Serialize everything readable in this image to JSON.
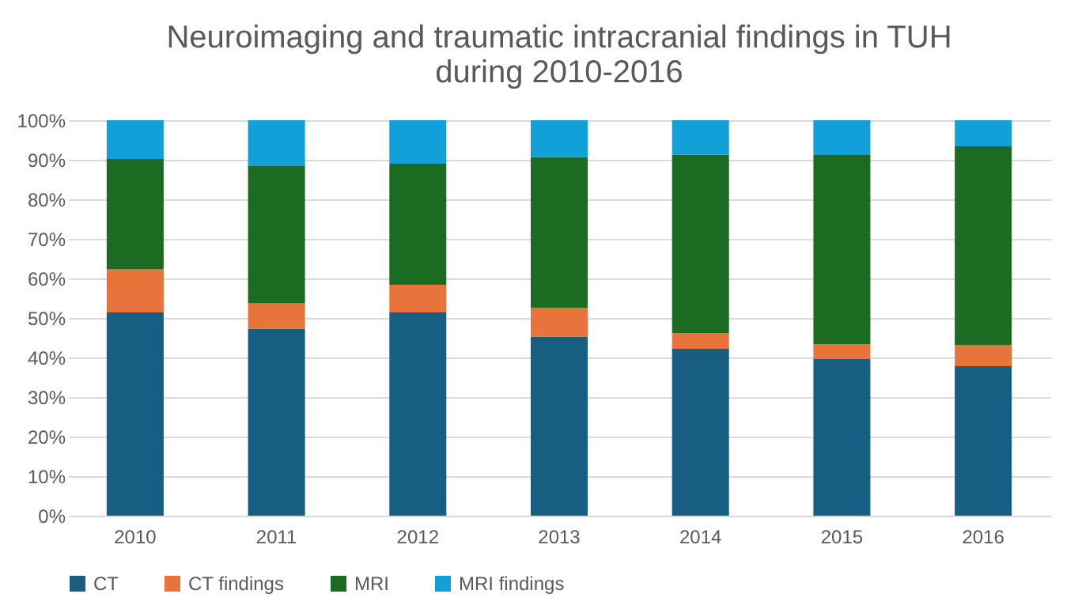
{
  "chart_data": {
    "type": "bar",
    "title": "Neuroimaging and traumatic intracranial findings in TUH during 2010-2016",
    "stacked": true,
    "categories": [
      "2010",
      "2011",
      "2012",
      "2013",
      "2014",
      "2015",
      "2016"
    ],
    "series": [
      {
        "name": "CT",
        "color": "#175f82",
        "values": [
          51.4,
          47.3,
          51.4,
          45.3,
          42.2,
          39.6,
          37.8
        ]
      },
      {
        "name": "CT findings",
        "color": "#e8743b",
        "values": [
          10.9,
          6.4,
          7.0,
          7.3,
          4.0,
          3.8,
          5.3
        ]
      },
      {
        "name": "MRI",
        "color": "#1b6b23",
        "values": [
          27.9,
          34.7,
          30.6,
          38.1,
          45.1,
          47.8,
          50.3
        ]
      },
      {
        "name": "MRI findings",
        "color": "#11a0d8",
        "values": [
          9.8,
          11.6,
          11.0,
          9.3,
          8.7,
          8.8,
          6.6
        ]
      }
    ],
    "ylim": [
      0,
      100
    ],
    "yticks": [
      {
        "value": 0,
        "label": "0%"
      },
      {
        "value": 10,
        "label": "10%"
      },
      {
        "value": 20,
        "label": "20%"
      },
      {
        "value": 30,
        "label": "30%"
      },
      {
        "value": 40,
        "label": "40%"
      },
      {
        "value": 50,
        "label": "50%"
      },
      {
        "value": 60,
        "label": "60%"
      },
      {
        "value": 70,
        "label": "70%"
      },
      {
        "value": 80,
        "label": "80%"
      },
      {
        "value": 90,
        "label": "90%"
      },
      {
        "value": 100,
        "label": "100%"
      }
    ],
    "grid": "y",
    "legend": "bottom"
  }
}
